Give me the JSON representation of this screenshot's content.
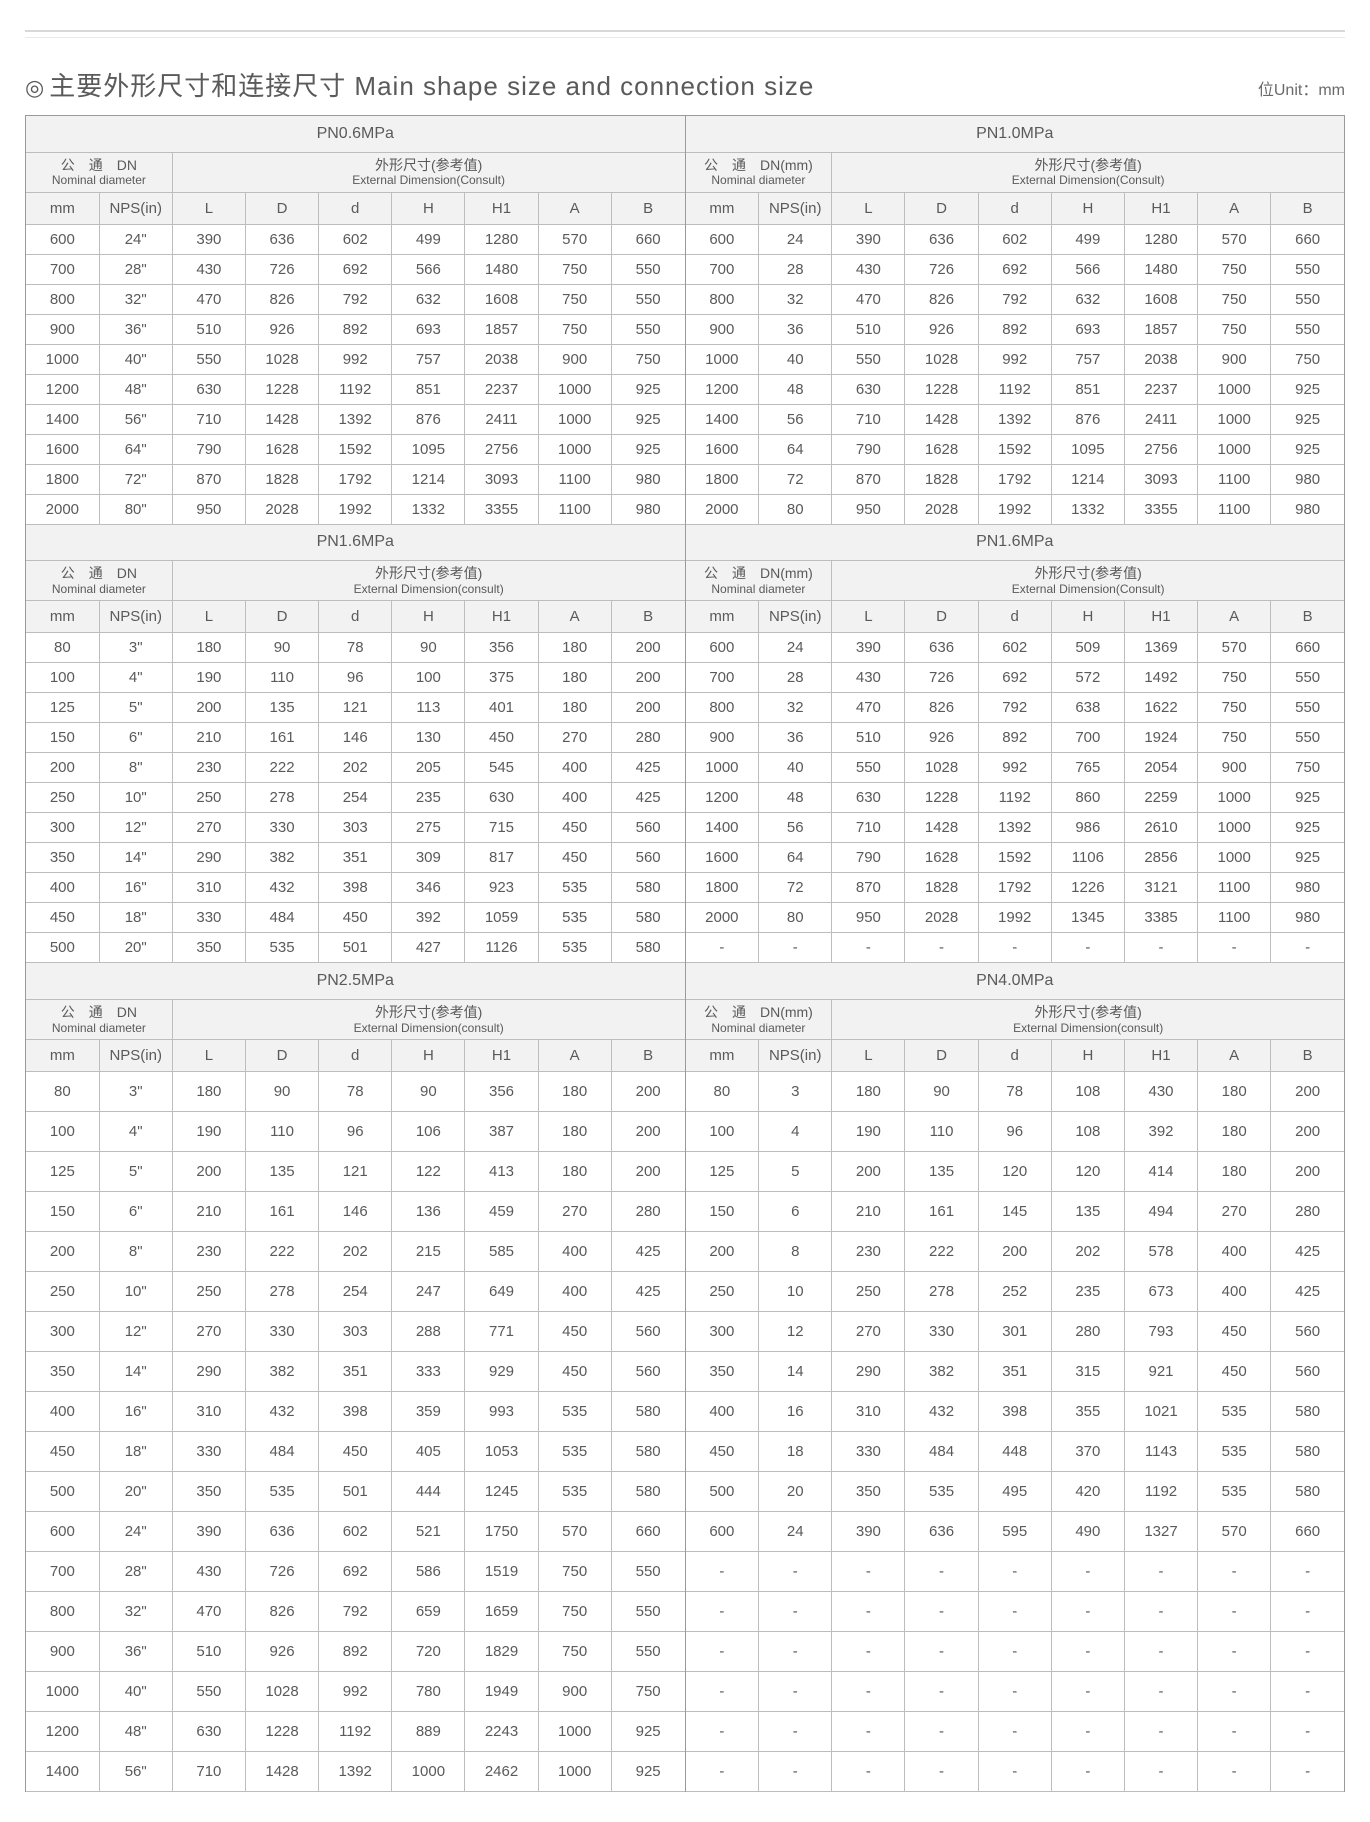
{
  "title_sym": "◎",
  "title_text": "主要外形尺寸和连接尺寸 Main shape size and connection size",
  "unit_label": "位Unit：mm",
  "hdr_dn_cn": "公　通　DN",
  "hdr_dn_mm_cn": "公　通　DN(mm)",
  "hdr_dn_en": "Nominal diameter",
  "hdr_ext_cn": "外形尺寸(参考值)",
  "hdr_ext_en_C": "External Dimension(Consult)",
  "hdr_ext_en_c": "External Dimension(consult)",
  "col_mm": "mm",
  "col_nps": "NPS(in)",
  "cols_dim": [
    "L",
    "D",
    "d",
    "H",
    "H1",
    "A",
    "B"
  ],
  "sections": [
    {
      "left": {
        "pn": "PN0.6MPa",
        "dn_label": "dn",
        "ext_en": "C",
        "rows": [
          [
            "600",
            "24\"",
            "390",
            "636",
            "602",
            "499",
            "1280",
            "570",
            "660"
          ],
          [
            "700",
            "28\"",
            "430",
            "726",
            "692",
            "566",
            "1480",
            "750",
            "550"
          ],
          [
            "800",
            "32\"",
            "470",
            "826",
            "792",
            "632",
            "1608",
            "750",
            "550"
          ],
          [
            "900",
            "36\"",
            "510",
            "926",
            "892",
            "693",
            "1857",
            "750",
            "550"
          ],
          [
            "1000",
            "40\"",
            "550",
            "1028",
            "992",
            "757",
            "2038",
            "900",
            "750"
          ],
          [
            "1200",
            "48\"",
            "630",
            "1228",
            "1192",
            "851",
            "2237",
            "1000",
            "925"
          ],
          [
            "1400",
            "56\"",
            "710",
            "1428",
            "1392",
            "876",
            "2411",
            "1000",
            "925"
          ],
          [
            "1600",
            "64\"",
            "790",
            "1628",
            "1592",
            "1095",
            "2756",
            "1000",
            "925"
          ],
          [
            "1800",
            "72\"",
            "870",
            "1828",
            "1792",
            "1214",
            "3093",
            "1100",
            "980"
          ],
          [
            "2000",
            "80\"",
            "950",
            "2028",
            "1992",
            "1332",
            "3355",
            "1100",
            "980"
          ]
        ]
      },
      "right": {
        "pn": "PN1.0MPa",
        "dn_label": "dnmm",
        "ext_en": "C",
        "rows": [
          [
            "600",
            "24",
            "390",
            "636",
            "602",
            "499",
            "1280",
            "570",
            "660"
          ],
          [
            "700",
            "28",
            "430",
            "726",
            "692",
            "566",
            "1480",
            "750",
            "550"
          ],
          [
            "800",
            "32",
            "470",
            "826",
            "792",
            "632",
            "1608",
            "750",
            "550"
          ],
          [
            "900",
            "36",
            "510",
            "926",
            "892",
            "693",
            "1857",
            "750",
            "550"
          ],
          [
            "1000",
            "40",
            "550",
            "1028",
            "992",
            "757",
            "2038",
            "900",
            "750"
          ],
          [
            "1200",
            "48",
            "630",
            "1228",
            "1192",
            "851",
            "2237",
            "1000",
            "925"
          ],
          [
            "1400",
            "56",
            "710",
            "1428",
            "1392",
            "876",
            "2411",
            "1000",
            "925"
          ],
          [
            "1600",
            "64",
            "790",
            "1628",
            "1592",
            "1095",
            "2756",
            "1000",
            "925"
          ],
          [
            "1800",
            "72",
            "870",
            "1828",
            "1792",
            "1214",
            "3093",
            "1100",
            "980"
          ],
          [
            "2000",
            "80",
            "950",
            "2028",
            "1992",
            "1332",
            "3355",
            "1100",
            "980"
          ]
        ]
      }
    },
    {
      "left": {
        "pn": "PN1.6MPa",
        "dn_label": "dn",
        "ext_en": "c",
        "rows": [
          [
            "80",
            "3\"",
            "180",
            "90",
            "78",
            "90",
            "356",
            "180",
            "200"
          ],
          [
            "100",
            "4\"",
            "190",
            "110",
            "96",
            "100",
            "375",
            "180",
            "200"
          ],
          [
            "125",
            "5\"",
            "200",
            "135",
            "121",
            "113",
            "401",
            "180",
            "200"
          ],
          [
            "150",
            "6\"",
            "210",
            "161",
            "146",
            "130",
            "450",
            "270",
            "280"
          ],
          [
            "200",
            "8\"",
            "230",
            "222",
            "202",
            "205",
            "545",
            "400",
            "425"
          ],
          [
            "250",
            "10\"",
            "250",
            "278",
            "254",
            "235",
            "630",
            "400",
            "425"
          ],
          [
            "300",
            "12\"",
            "270",
            "330",
            "303",
            "275",
            "715",
            "450",
            "560"
          ],
          [
            "350",
            "14\"",
            "290",
            "382",
            "351",
            "309",
            "817",
            "450",
            "560"
          ],
          [
            "400",
            "16\"",
            "310",
            "432",
            "398",
            "346",
            "923",
            "535",
            "580"
          ],
          [
            "450",
            "18\"",
            "330",
            "484",
            "450",
            "392",
            "1059",
            "535",
            "580"
          ],
          [
            "500",
            "20\"",
            "350",
            "535",
            "501",
            "427",
            "1126",
            "535",
            "580"
          ]
        ]
      },
      "right": {
        "pn": "PN1.6MPa",
        "dn_label": "dnmm",
        "ext_en": "C",
        "rows": [
          [
            "600",
            "24",
            "390",
            "636",
            "602",
            "509",
            "1369",
            "570",
            "660"
          ],
          [
            "700",
            "28",
            "430",
            "726",
            "692",
            "572",
            "1492",
            "750",
            "550"
          ],
          [
            "800",
            "32",
            "470",
            "826",
            "792",
            "638",
            "1622",
            "750",
            "550"
          ],
          [
            "900",
            "36",
            "510",
            "926",
            "892",
            "700",
            "1924",
            "750",
            "550"
          ],
          [
            "1000",
            "40",
            "550",
            "1028",
            "992",
            "765",
            "2054",
            "900",
            "750"
          ],
          [
            "1200",
            "48",
            "630",
            "1228",
            "1192",
            "860",
            "2259",
            "1000",
            "925"
          ],
          [
            "1400",
            "56",
            "710",
            "1428",
            "1392",
            "986",
            "2610",
            "1000",
            "925"
          ],
          [
            "1600",
            "64",
            "790",
            "1628",
            "1592",
            "1106",
            "2856",
            "1000",
            "925"
          ],
          [
            "1800",
            "72",
            "870",
            "1828",
            "1792",
            "1226",
            "3121",
            "1100",
            "980"
          ],
          [
            "2000",
            "80",
            "950",
            "2028",
            "1992",
            "1345",
            "3385",
            "1100",
            "980"
          ],
          [
            "-",
            "-",
            "-",
            "-",
            "-",
            "-",
            "-",
            "-",
            "-"
          ]
        ]
      }
    },
    {
      "tall": true,
      "left": {
        "pn": "PN2.5MPa",
        "dn_label": "dn",
        "ext_en": "c",
        "rows": [
          [
            "80",
            "3\"",
            "180",
            "90",
            "78",
            "90",
            "356",
            "180",
            "200"
          ],
          [
            "100",
            "4\"",
            "190",
            "110",
            "96",
            "106",
            "387",
            "180",
            "200"
          ],
          [
            "125",
            "5\"",
            "200",
            "135",
            "121",
            "122",
            "413",
            "180",
            "200"
          ],
          [
            "150",
            "6\"",
            "210",
            "161",
            "146",
            "136",
            "459",
            "270",
            "280"
          ],
          [
            "200",
            "8\"",
            "230",
            "222",
            "202",
            "215",
            "585",
            "400",
            "425"
          ],
          [
            "250",
            "10\"",
            "250",
            "278",
            "254",
            "247",
            "649",
            "400",
            "425"
          ],
          [
            "300",
            "12\"",
            "270",
            "330",
            "303",
            "288",
            "771",
            "450",
            "560"
          ],
          [
            "350",
            "14\"",
            "290",
            "382",
            "351",
            "333",
            "929",
            "450",
            "560"
          ],
          [
            "400",
            "16\"",
            "310",
            "432",
            "398",
            "359",
            "993",
            "535",
            "580"
          ],
          [
            "450",
            "18\"",
            "330",
            "484",
            "450",
            "405",
            "1053",
            "535",
            "580"
          ],
          [
            "500",
            "20\"",
            "350",
            "535",
            "501",
            "444",
            "1245",
            "535",
            "580"
          ],
          [
            "600",
            "24\"",
            "390",
            "636",
            "602",
            "521",
            "1750",
            "570",
            "660"
          ],
          [
            "700",
            "28\"",
            "430",
            "726",
            "692",
            "586",
            "1519",
            "750",
            "550"
          ],
          [
            "800",
            "32\"",
            "470",
            "826",
            "792",
            "659",
            "1659",
            "750",
            "550"
          ],
          [
            "900",
            "36\"",
            "510",
            "926",
            "892",
            "720",
            "1829",
            "750",
            "550"
          ],
          [
            "1000",
            "40\"",
            "550",
            "1028",
            "992",
            "780",
            "1949",
            "900",
            "750"
          ],
          [
            "1200",
            "48\"",
            "630",
            "1228",
            "1192",
            "889",
            "2243",
            "1000",
            "925"
          ],
          [
            "1400",
            "56\"",
            "710",
            "1428",
            "1392",
            "1000",
            "2462",
            "1000",
            "925"
          ]
        ]
      },
      "right": {
        "pn": "PN4.0MPa",
        "dn_label": "dnmm",
        "ext_en": "c",
        "rows": [
          [
            "80",
            "3",
            "180",
            "90",
            "78",
            "108",
            "430",
            "180",
            "200"
          ],
          [
            "100",
            "4",
            "190",
            "110",
            "96",
            "108",
            "392",
            "180",
            "200"
          ],
          [
            "125",
            "5",
            "200",
            "135",
            "120",
            "120",
            "414",
            "180",
            "200"
          ],
          [
            "150",
            "6",
            "210",
            "161",
            "145",
            "135",
            "494",
            "270",
            "280"
          ],
          [
            "200",
            "8",
            "230",
            "222",
            "200",
            "202",
            "578",
            "400",
            "425"
          ],
          [
            "250",
            "10",
            "250",
            "278",
            "252",
            "235",
            "673",
            "400",
            "425"
          ],
          [
            "300",
            "12",
            "270",
            "330",
            "301",
            "280",
            "793",
            "450",
            "560"
          ],
          [
            "350",
            "14",
            "290",
            "382",
            "351",
            "315",
            "921",
            "450",
            "560"
          ],
          [
            "400",
            "16",
            "310",
            "432",
            "398",
            "355",
            "1021",
            "535",
            "580"
          ],
          [
            "450",
            "18",
            "330",
            "484",
            "448",
            "370",
            "1143",
            "535",
            "580"
          ],
          [
            "500",
            "20",
            "350",
            "535",
            "495",
            "420",
            "1192",
            "535",
            "580"
          ],
          [
            "600",
            "24",
            "390",
            "636",
            "595",
            "490",
            "1327",
            "570",
            "660"
          ],
          [
            "-",
            "-",
            "-",
            "-",
            "-",
            "-",
            "-",
            "-",
            "-"
          ],
          [
            "-",
            "-",
            "-",
            "-",
            "-",
            "-",
            "-",
            "-",
            "-"
          ],
          [
            "-",
            "-",
            "-",
            "-",
            "-",
            "-",
            "-",
            "-",
            "-"
          ],
          [
            "-",
            "-",
            "-",
            "-",
            "-",
            "-",
            "-",
            "-",
            "-"
          ],
          [
            "-",
            "-",
            "-",
            "-",
            "-",
            "-",
            "-",
            "-",
            "-"
          ],
          [
            "-",
            "-",
            "-",
            "-",
            "-",
            "-",
            "-",
            "-",
            "-"
          ]
        ]
      }
    }
  ]
}
